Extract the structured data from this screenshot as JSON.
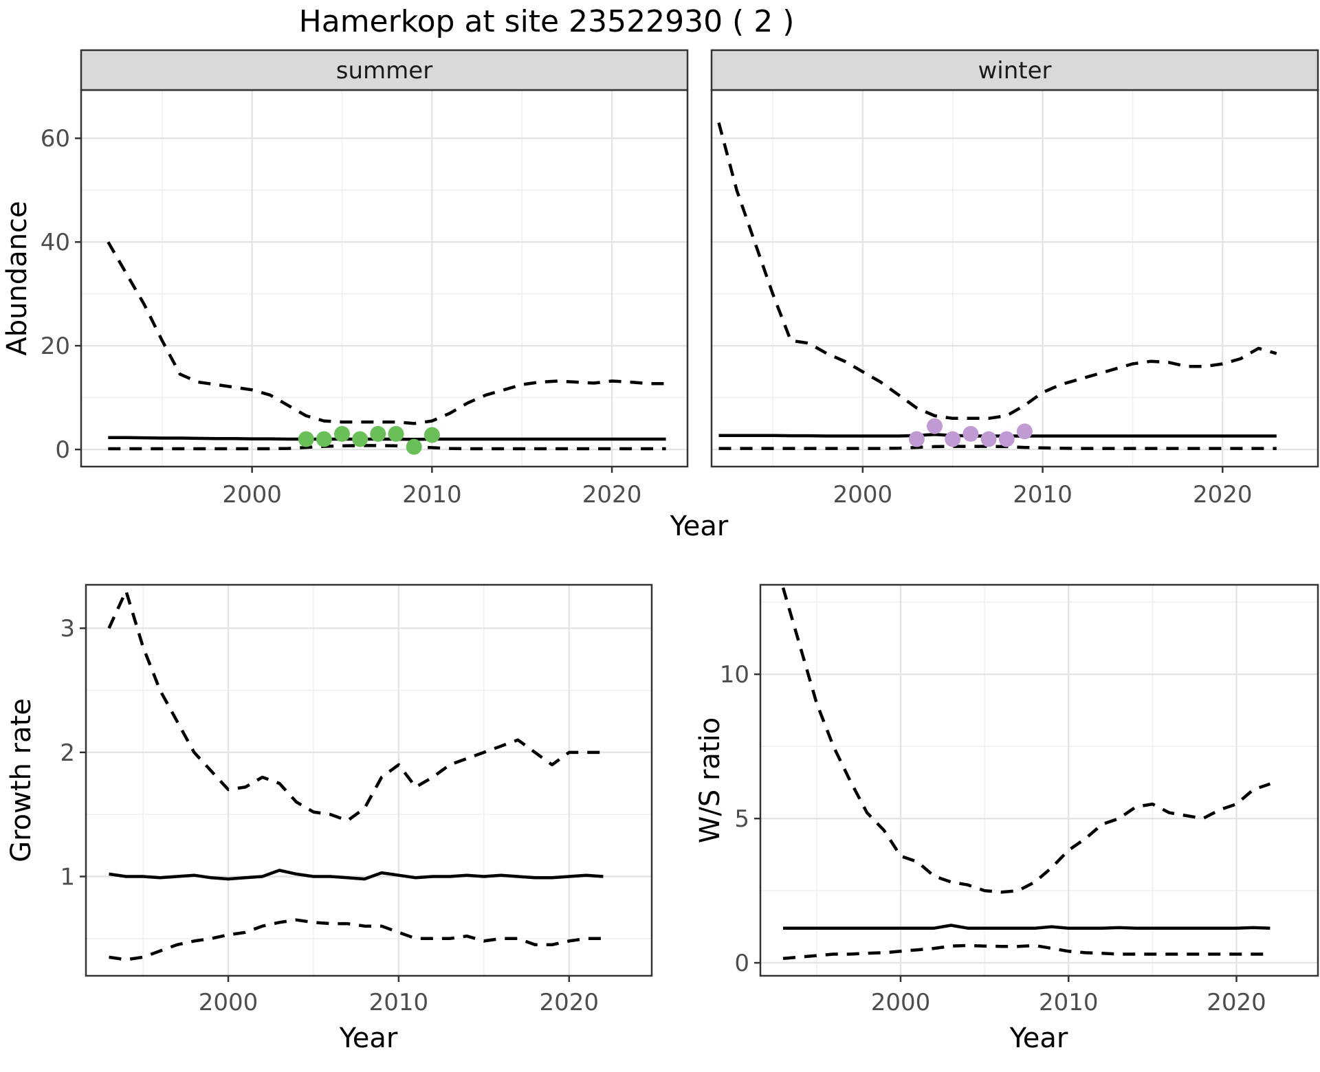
{
  "title": "Hamerkop at site 23522930 ( 2 )",
  "chart_data": {
    "type": "line",
    "figure_title": "Hamerkop at site 23522930 ( 2 )",
    "legend_position": "none",
    "grid": "on",
    "colors": {
      "line": "#000000",
      "grid_major": "#E4E4E4",
      "grid_minor": "#F0F0F0",
      "strip_bg": "#D9D9D9",
      "panel_border": "#333333",
      "tick_mark": "#333333",
      "tick_text": "#4D4D4D",
      "summer_points": "#6BBF59",
      "winter_points": "#C09AD2"
    },
    "panels": [
      {
        "id": "summer-abundance",
        "strip_label": "summer",
        "ylabel": "Abundance",
        "xlabel": "Year",
        "xlim": [
          1990.5,
          2024.2
        ],
        "ylim": [
          -3.3,
          69.3
        ],
        "xticks": [
          2000,
          2010,
          2020
        ],
        "xticks_minor": [
          1995,
          2005,
          2015
        ],
        "yticks": [
          0,
          20,
          40,
          60
        ],
        "yticks_minor": [
          10,
          30,
          50
        ],
        "show_ylabels": true,
        "x": [
          1992,
          1993,
          1994,
          1995,
          1996,
          1997,
          1998,
          1999,
          2000,
          2001,
          2002,
          2003,
          2004,
          2005,
          2006,
          2007,
          2008,
          2009,
          2010,
          2011,
          2012,
          2013,
          2014,
          2015,
          2016,
          2017,
          2018,
          2019,
          2020,
          2021,
          2022,
          2023
        ],
        "series": [
          {
            "name": "upper-ci",
            "style": "dashed",
            "values": [
              40,
              34,
              28,
              21,
              14.5,
              13,
              12.5,
              12,
              11.5,
              10.5,
              8.5,
              6.5,
              5.5,
              5.3,
              5.3,
              5.3,
              5.3,
              5,
              5.5,
              7,
              9,
              10.5,
              11.5,
              12.5,
              13,
              13.2,
              13,
              12.8,
              13.2,
              13,
              12.7,
              12.7
            ]
          },
          {
            "name": "fit",
            "style": "solid",
            "values": [
              2.3,
              2.3,
              2.25,
              2.2,
              2.2,
              2.15,
              2.1,
              2.1,
              2.05,
              2.05,
              2,
              2,
              2,
              2,
              2,
              2,
              2,
              1.95,
              2,
              2,
              2,
              2,
              2,
              2,
              2,
              2,
              2,
              2,
              2,
              2,
              2,
              2
            ]
          },
          {
            "name": "lower-ci",
            "style": "dashed",
            "values": [
              0.15,
              0.15,
              0.15,
              0.15,
              0.15,
              0.15,
              0.15,
              0.15,
              0.15,
              0.15,
              0.2,
              0.4,
              0.6,
              0.7,
              0.75,
              0.75,
              0.7,
              0.5,
              0.35,
              0.2,
              0.15,
              0.15,
              0.15,
              0.15,
              0.15,
              0.15,
              0.15,
              0.15,
              0.15,
              0.15,
              0.15,
              0.15
            ]
          }
        ],
        "points": {
          "name": "summer-observed-points",
          "color": "#6BBF59",
          "x": [
            2003,
            2004,
            2005,
            2006,
            2007,
            2008,
            2009,
            2010
          ],
          "y": [
            2,
            2,
            3,
            2,
            3,
            3,
            0.5,
            2.8
          ]
        }
      },
      {
        "id": "winter-abundance",
        "strip_label": "winter",
        "ylabel": "",
        "xlabel": "",
        "xlim": [
          1991.6,
          2025.3
        ],
        "ylim": [
          -3.3,
          69.3
        ],
        "xticks": [
          2000,
          2010,
          2020
        ],
        "xticks_minor": [
          1995,
          2005,
          2015
        ],
        "yticks": [
          0,
          20,
          40,
          60
        ],
        "yticks_minor": [
          10,
          30,
          50
        ],
        "show_ylabels": false,
        "x": [
          1992,
          1993,
          1994,
          1995,
          1996,
          1997,
          1998,
          1999,
          2000,
          2001,
          2002,
          2003,
          2004,
          2005,
          2006,
          2007,
          2008,
          2009,
          2010,
          2011,
          2012,
          2013,
          2014,
          2015,
          2016,
          2017,
          2018,
          2019,
          2020,
          2021,
          2022,
          2023
        ],
        "series": [
          {
            "name": "upper-ci",
            "style": "dashed",
            "values": [
              63,
              50,
              40,
              30,
              21,
              20.5,
              18.5,
              17,
              15,
              13,
              10.5,
              8,
              6.5,
              6,
              6,
              6,
              6.5,
              8.5,
              11,
              12.5,
              13.5,
              14.5,
              15.5,
              16.5,
              17,
              16.8,
              16,
              16,
              16.5,
              17.5,
              19.5,
              18.5
            ]
          },
          {
            "name": "fit",
            "style": "solid",
            "values": [
              2.7,
              2.7,
              2.7,
              2.7,
              2.65,
              2.65,
              2.6,
              2.6,
              2.6,
              2.6,
              2.6,
              2.7,
              2.9,
              2.7,
              2.6,
              2.6,
              2.6,
              2.6,
              2.6,
              2.6,
              2.6,
              2.6,
              2.6,
              2.6,
              2.6,
              2.6,
              2.6,
              2.6,
              2.6,
              2.6,
              2.6,
              2.6
            ]
          },
          {
            "name": "lower-ci",
            "style": "dashed",
            "values": [
              0.2,
              0.2,
              0.2,
              0.2,
              0.2,
              0.2,
              0.2,
              0.2,
              0.2,
              0.2,
              0.25,
              0.4,
              0.55,
              0.6,
              0.6,
              0.6,
              0.55,
              0.4,
              0.3,
              0.25,
              0.2,
              0.2,
              0.2,
              0.2,
              0.2,
              0.2,
              0.2,
              0.2,
              0.2,
              0.2,
              0.2,
              0.2
            ]
          }
        ],
        "points": {
          "name": "winter-observed-points",
          "color": "#C09AD2",
          "x": [
            2003,
            2004,
            2005,
            2006,
            2007,
            2008,
            2009
          ],
          "y": [
            2,
            4.5,
            2,
            3,
            2,
            2,
            3.5
          ]
        }
      },
      {
        "id": "growth-rate",
        "strip_label": "",
        "ylabel": "Growth rate",
        "xlabel": "Year",
        "xlim": [
          1991.65,
          2024.85
        ],
        "ylim": [
          0.2,
          3.35
        ],
        "xticks": [
          2000,
          2010,
          2020
        ],
        "xticks_minor": [
          1995,
          2005,
          2015
        ],
        "yticks": [
          1,
          2,
          3
        ],
        "yticks_minor": [
          0.5,
          1.5,
          2.5
        ],
        "show_ylabels": true,
        "x": [
          1993,
          1994,
          1995,
          1996,
          1997,
          1998,
          1999,
          2000,
          2001,
          2002,
          2003,
          2004,
          2005,
          2006,
          2007,
          2008,
          2009,
          2010,
          2011,
          2012,
          2013,
          2014,
          2015,
          2016,
          2017,
          2018,
          2019,
          2020,
          2021,
          2022
        ],
        "series": [
          {
            "name": "upper-ci",
            "style": "dashed",
            "values": [
              3,
              3.3,
              2.85,
              2.5,
              2.25,
              2,
              1.85,
              1.7,
              1.72,
              1.8,
              1.75,
              1.6,
              1.52,
              1.5,
              1.45,
              1.55,
              1.8,
              1.9,
              1.72,
              1.8,
              1.9,
              1.95,
              2,
              2.05,
              2.1,
              2,
              1.9,
              2,
              2,
              2
            ]
          },
          {
            "name": "fit",
            "style": "solid",
            "values": [
              1.02,
              1,
              1,
              0.99,
              1,
              1.01,
              0.99,
              0.98,
              0.99,
              1,
              1.05,
              1.02,
              1,
              1,
              0.99,
              0.98,
              1.03,
              1.01,
              0.99,
              1,
              1,
              1.01,
              1,
              1.01,
              1,
              0.99,
              0.99,
              1,
              1.01,
              1
            ]
          },
          {
            "name": "lower-ci",
            "style": "dashed",
            "values": [
              0.35,
              0.33,
              0.35,
              0.4,
              0.45,
              0.48,
              0.5,
              0.53,
              0.55,
              0.6,
              0.63,
              0.65,
              0.63,
              0.62,
              0.62,
              0.6,
              0.6,
              0.55,
              0.5,
              0.5,
              0.5,
              0.52,
              0.48,
              0.5,
              0.5,
              0.45,
              0.45,
              0.48,
              0.5,
              0.5
            ]
          }
        ]
      },
      {
        "id": "ws-ratio",
        "strip_label": "",
        "ylabel": "W/S ratio",
        "xlabel": "Year",
        "xlim": [
          1991.65,
          2024.85
        ],
        "ylim": [
          -0.45,
          13.1
        ],
        "xticks": [
          2000,
          2010,
          2020
        ],
        "xticks_minor": [
          1995,
          2005,
          2015
        ],
        "yticks": [
          0,
          5,
          10
        ],
        "yticks_minor": [
          2.5,
          7.5,
          12.5
        ],
        "show_ylabels": true,
        "x": [
          1993,
          1994,
          1995,
          1996,
          1997,
          1998,
          1999,
          2000,
          2001,
          2002,
          2003,
          2004,
          2005,
          2006,
          2007,
          2008,
          2009,
          2010,
          2011,
          2012,
          2013,
          2014,
          2015,
          2016,
          2017,
          2018,
          2019,
          2020,
          2021,
          2022
        ],
        "series": [
          {
            "name": "upper-ci",
            "style": "dashed",
            "values": [
              13,
              11,
              9,
              7.5,
              6.3,
              5.2,
              4.6,
              3.7,
              3.5,
              3,
              2.8,
              2.7,
              2.5,
              2.45,
              2.5,
              2.8,
              3.3,
              3.9,
              4.3,
              4.8,
              5,
              5.4,
              5.5,
              5.2,
              5.1,
              5,
              5.3,
              5.5,
              6,
              6.2
            ]
          },
          {
            "name": "fit",
            "style": "solid",
            "values": [
              1.2,
              1.2,
              1.2,
              1.2,
              1.2,
              1.2,
              1.2,
              1.2,
              1.2,
              1.2,
              1.3,
              1.2,
              1.2,
              1.2,
              1.2,
              1.2,
              1.25,
              1.2,
              1.2,
              1.2,
              1.22,
              1.2,
              1.2,
              1.2,
              1.2,
              1.2,
              1.2,
              1.2,
              1.22,
              1.2
            ]
          },
          {
            "name": "lower-ci",
            "style": "dashed",
            "values": [
              0.15,
              0.2,
              0.25,
              0.3,
              0.3,
              0.33,
              0.35,
              0.4,
              0.45,
              0.5,
              0.58,
              0.6,
              0.58,
              0.57,
              0.57,
              0.6,
              0.5,
              0.4,
              0.35,
              0.33,
              0.3,
              0.3,
              0.3,
              0.3,
              0.3,
              0.3,
              0.3,
              0.3,
              0.3,
              0.3
            ]
          }
        ]
      }
    ]
  }
}
